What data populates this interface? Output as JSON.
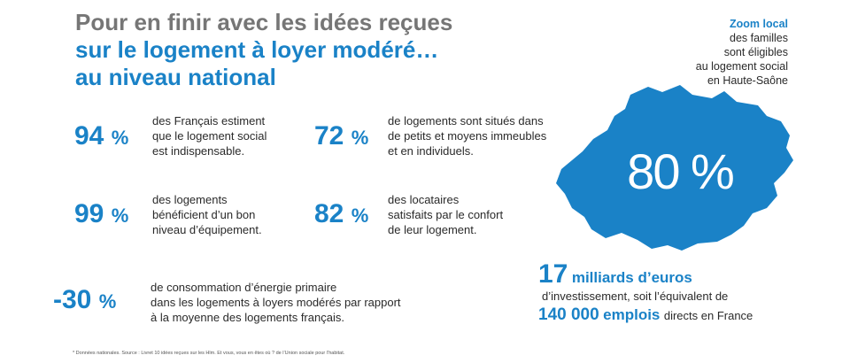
{
  "title": {
    "line1": "Pour en finir avec les idées reçues",
    "line2": "sur le logement à loyer modéré…",
    "line3": "au niveau national"
  },
  "stats": [
    {
      "value": "94",
      "unit": "%",
      "text": [
        "des Français estiment",
        "que le logement social",
        "est indispensable."
      ]
    },
    {
      "value": "72",
      "unit": "%",
      "text": [
        "de logements sont situés dans",
        "de petits et moyens immeubles",
        "et en individuels."
      ]
    },
    {
      "value": "99",
      "unit": "%",
      "text": [
        "des logements",
        "bénéficient d’un bon",
        "niveau d’équipement."
      ]
    },
    {
      "value": "82",
      "unit": "%",
      "text": [
        "des locataires",
        "satisfaits par le confort",
        "de leur logement."
      ]
    },
    {
      "value": "-30",
      "unit": "%",
      "text": [
        "de consommation d’énergie primaire",
        "dans les logements à loyers modérés par rapport",
        "à la moyenne des logements français."
      ]
    }
  ],
  "zoom": {
    "heading": "Zoom local",
    "lines": [
      "des familles",
      "sont éligibles",
      "au logement social",
      "en Haute-Saône"
    ]
  },
  "map": {
    "value": "80 %",
    "color": "#1a82c7"
  },
  "investment": {
    "amount": "17",
    "amount_label": "milliards d’euros",
    "line2": "d’investissement, soit l’équivalent de",
    "jobs": "140 000",
    "jobs_label": "emplois",
    "jobs_suffix": "directs en France"
  },
  "footnote": "* Données nationales. Source : Livret 10 idées reçues sur les Hlm. Et vous, vous en êtes où ? de l’Union sociale pour l’habitat."
}
